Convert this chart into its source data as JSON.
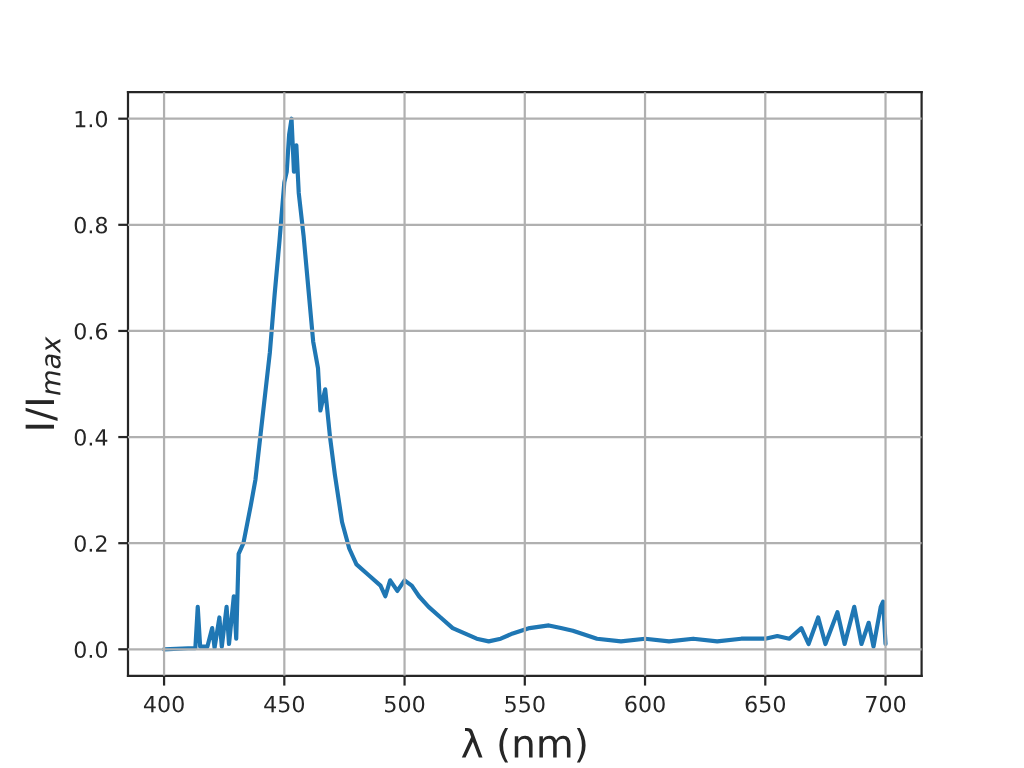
{
  "chart_data": {
    "type": "line",
    "xlabel": "λ (nm)",
    "ylabel": "I/I$_{max}$",
    "xlim": [
      385,
      715
    ],
    "ylim": [
      -0.05,
      1.05
    ],
    "xticks": [
      400,
      450,
      500,
      550,
      600,
      650,
      700
    ],
    "yticks": [
      {
        "value": 0,
        "label": "0.0"
      },
      {
        "value": 0.2,
        "label": "0.2"
      },
      {
        "value": 0.4,
        "label": "0.4"
      },
      {
        "value": 0.6,
        "label": "0.6"
      },
      {
        "value": 0.8,
        "label": "0.8"
      },
      {
        "value": 1,
        "label": "1.0"
      }
    ],
    "grid": true,
    "legend": false,
    "series": [
      {
        "color": "#1f77b4",
        "x": [
          400,
          410,
          413,
          414,
          415,
          418,
          420,
          421,
          423,
          424,
          426,
          427,
          429,
          430,
          431,
          433,
          436,
          438,
          440,
          442,
          444,
          446,
          448,
          450,
          451,
          452,
          453,
          454,
          455,
          456,
          458,
          460,
          462,
          464,
          465,
          467,
          469,
          471,
          474,
          477,
          480,
          485,
          490,
          492,
          494,
          497,
          500,
          503,
          506,
          510,
          515,
          520,
          525,
          530,
          535,
          540,
          545,
          552,
          560,
          565,
          570,
          580,
          590,
          600,
          610,
          620,
          630,
          640,
          650,
          655,
          660,
          665,
          668,
          672,
          675,
          680,
          683,
          687,
          690,
          693,
          695,
          698,
          699,
          700
        ],
        "values": [
          0,
          0.002,
          0.002,
          0.08,
          0.005,
          0.005,
          0.04,
          0.003,
          0.06,
          0.005,
          0.08,
          0.01,
          0.1,
          0.02,
          0.18,
          0.2,
          0.27,
          0.32,
          0.4,
          0.48,
          0.56,
          0.67,
          0.77,
          0.88,
          0.9,
          0.97,
          1.0,
          0.9,
          0.95,
          0.86,
          0.78,
          0.68,
          0.58,
          0.53,
          0.45,
          0.49,
          0.4,
          0.33,
          0.24,
          0.19,
          0.16,
          0.14,
          0.12,
          0.1,
          0.13,
          0.11,
          0.13,
          0.12,
          0.1,
          0.08,
          0.06,
          0.04,
          0.03,
          0.02,
          0.015,
          0.02,
          0.03,
          0.04,
          0.045,
          0.04,
          0.035,
          0.02,
          0.015,
          0.02,
          0.015,
          0.02,
          0.015,
          0.02,
          0.02,
          0.025,
          0.02,
          0.04,
          0.01,
          0.06,
          0.01,
          0.07,
          0.01,
          0.08,
          0.01,
          0.05,
          0.005,
          0.08,
          0.09,
          0.01
        ]
      }
    ]
  }
}
